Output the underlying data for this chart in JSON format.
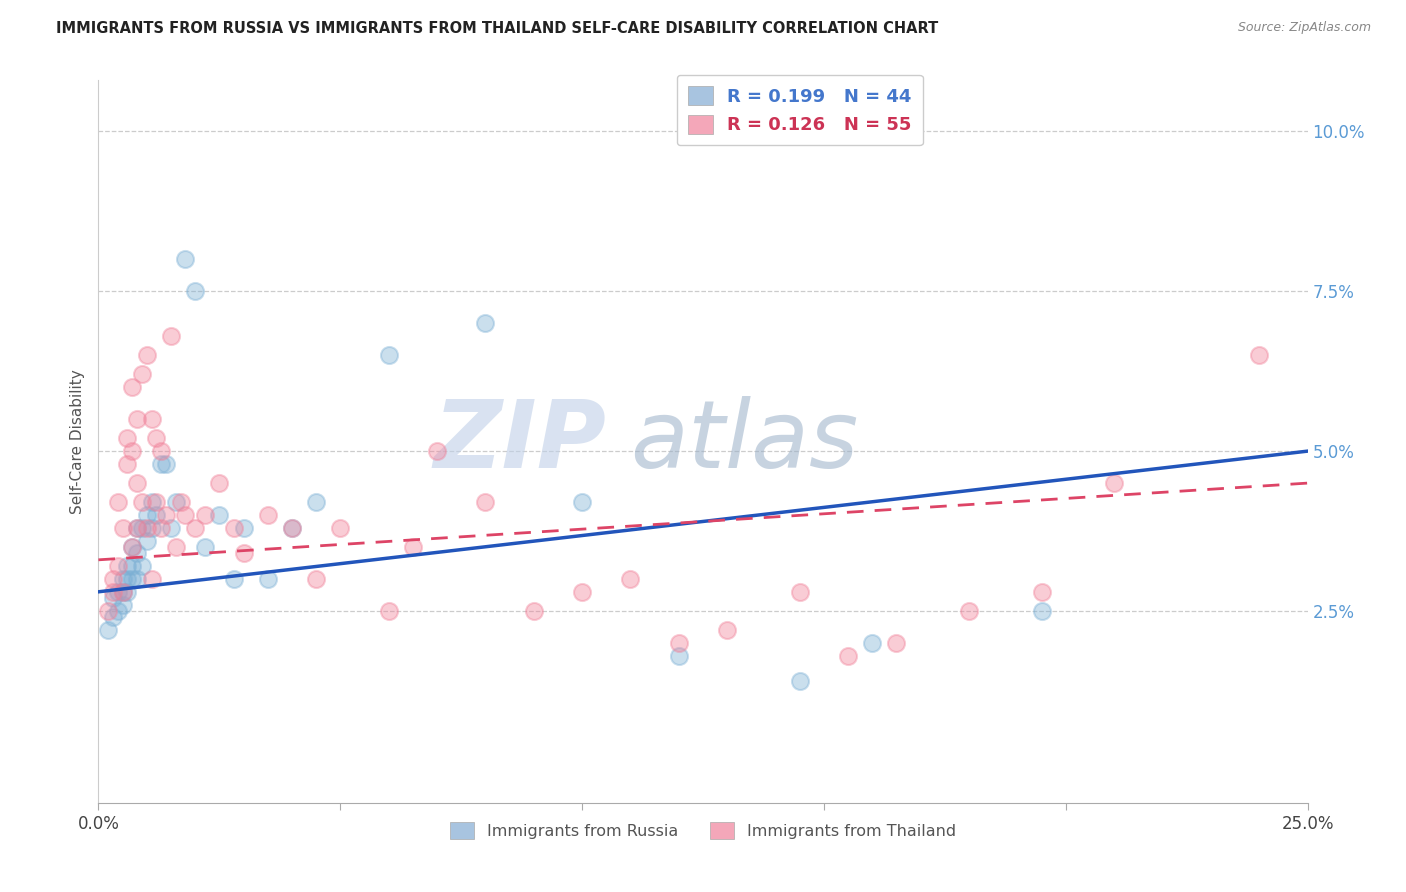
{
  "title": "IMMIGRANTS FROM RUSSIA VS IMMIGRANTS FROM THAILAND SELF-CARE DISABILITY CORRELATION CHART",
  "source": "Source: ZipAtlas.com",
  "ylabel": "Self-Care Disability",
  "yaxis_labels": [
    "2.5%",
    "5.0%",
    "7.5%",
    "10.0%"
  ],
  "yaxis_values": [
    0.025,
    0.05,
    0.075,
    0.1
  ],
  "xlim": [
    0.0,
    0.25
  ],
  "ylim": [
    -0.005,
    0.108
  ],
  "blue_color": "#7bafd4",
  "pink_color": "#f08098",
  "blue_line_color": "#2255bb",
  "pink_line_color": "#dd4466",
  "watermark_zip": "ZIP",
  "watermark_atlas": "atlas",
  "R_russia": "0.199",
  "N_russia": "44",
  "R_thailand": "0.126",
  "N_thailand": "55",
  "russia_x": [
    0.002,
    0.003,
    0.003,
    0.004,
    0.004,
    0.005,
    0.005,
    0.005,
    0.006,
    0.006,
    0.006,
    0.007,
    0.007,
    0.007,
    0.008,
    0.008,
    0.008,
    0.009,
    0.009,
    0.01,
    0.01,
    0.011,
    0.011,
    0.012,
    0.013,
    0.014,
    0.015,
    0.016,
    0.018,
    0.02,
    0.022,
    0.025,
    0.028,
    0.03,
    0.035,
    0.04,
    0.045,
    0.06,
    0.08,
    0.1,
    0.12,
    0.145,
    0.16,
    0.195
  ],
  "russia_y": [
    0.022,
    0.024,
    0.027,
    0.025,
    0.028,
    0.028,
    0.026,
    0.03,
    0.03,
    0.032,
    0.028,
    0.035,
    0.032,
    0.03,
    0.038,
    0.034,
    0.03,
    0.038,
    0.032,
    0.04,
    0.036,
    0.042,
    0.038,
    0.04,
    0.048,
    0.048,
    0.038,
    0.042,
    0.08,
    0.075,
    0.035,
    0.04,
    0.03,
    0.038,
    0.03,
    0.038,
    0.042,
    0.065,
    0.07,
    0.042,
    0.018,
    0.014,
    0.02,
    0.025
  ],
  "thailand_x": [
    0.002,
    0.003,
    0.003,
    0.004,
    0.004,
    0.005,
    0.005,
    0.006,
    0.006,
    0.007,
    0.007,
    0.007,
    0.008,
    0.008,
    0.008,
    0.009,
    0.009,
    0.01,
    0.01,
    0.011,
    0.011,
    0.012,
    0.012,
    0.013,
    0.013,
    0.014,
    0.015,
    0.016,
    0.017,
    0.018,
    0.02,
    0.022,
    0.025,
    0.028,
    0.03,
    0.035,
    0.04,
    0.045,
    0.05,
    0.06,
    0.065,
    0.07,
    0.08,
    0.09,
    0.1,
    0.11,
    0.12,
    0.13,
    0.145,
    0.155,
    0.165,
    0.18,
    0.195,
    0.21,
    0.24
  ],
  "thailand_y": [
    0.025,
    0.028,
    0.03,
    0.032,
    0.042,
    0.028,
    0.038,
    0.052,
    0.048,
    0.06,
    0.05,
    0.035,
    0.055,
    0.045,
    0.038,
    0.062,
    0.042,
    0.065,
    0.038,
    0.055,
    0.03,
    0.052,
    0.042,
    0.05,
    0.038,
    0.04,
    0.068,
    0.035,
    0.042,
    0.04,
    0.038,
    0.04,
    0.045,
    0.038,
    0.034,
    0.04,
    0.038,
    0.03,
    0.038,
    0.025,
    0.035,
    0.05,
    0.042,
    0.025,
    0.028,
    0.03,
    0.02,
    0.022,
    0.028,
    0.018,
    0.02,
    0.025,
    0.028,
    0.045,
    0.065
  ]
}
